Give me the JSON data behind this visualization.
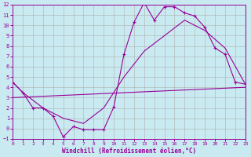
{
  "xlabel": "Windchill (Refroidissement éolien,°C)",
  "bg_color": "#c8eaf0",
  "grid_color": "#b0b0b0",
  "line_color": "#990099",
  "xmin": 0,
  "xmax": 23,
  "ymin": -1,
  "ymax": 12,
  "line1_x": [
    0,
    1,
    2,
    3,
    4,
    5,
    6,
    7,
    8,
    9,
    10,
    11,
    12,
    13,
    14,
    15,
    16,
    17,
    18,
    19,
    20,
    21,
    22,
    23
  ],
  "line1_y": [
    4.5,
    3.5,
    2.0,
    2.0,
    1.2,
    -0.8,
    0.2,
    -0.1,
    -0.1,
    -0.1,
    2.1,
    7.2,
    10.3,
    12.2,
    10.5,
    11.8,
    11.8,
    11.2,
    10.9,
    9.8,
    7.8,
    7.2,
    4.5,
    4.3
  ],
  "line2_x": [
    0,
    23
  ],
  "line2_y": [
    4.5,
    4.3
  ],
  "line3_x": [
    0,
    23
  ],
  "line3_y": [
    3.5,
    3.5
  ],
  "line4_x": [
    0,
    1,
    3,
    5,
    7,
    9,
    11,
    13,
    15,
    17,
    19,
    21,
    23
  ],
  "line4_y": [
    4.5,
    3.5,
    2.0,
    1.0,
    0.5,
    2.0,
    5.0,
    7.5,
    9.0,
    10.5,
    9.5,
    7.8,
    4.3
  ]
}
